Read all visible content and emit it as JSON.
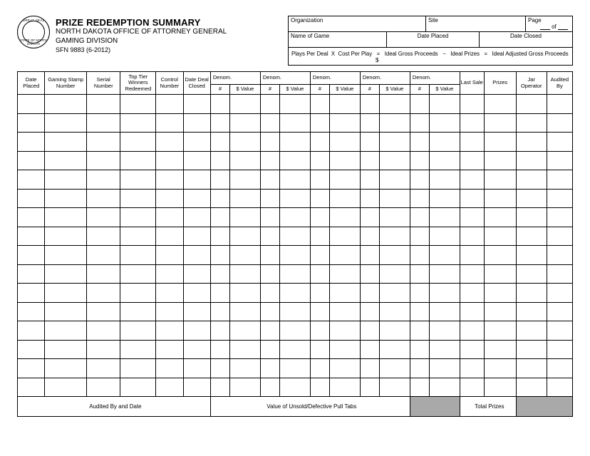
{
  "header": {
    "title": "PRIZE REDEMPTION SUMMARY",
    "office_line1": "NORTH DAKOTA OFFICE OF ATTORNEY GENERAL",
    "office_line2": "GAMING DIVISION",
    "form_code": "SFN 9883 (6-2012)",
    "seal_top": "GREAT SEAL",
    "seal_bottom": "STATE OF NORTH DAKOTA",
    "organization_label": "Organization",
    "site_label": "Site",
    "page_label": "Page",
    "page_of": "of",
    "name_of_game_label": "Name of Game",
    "date_placed_label": "Date Placed",
    "date_closed_label": "Date Closed",
    "formula_ppd": "Plays Per Deal",
    "formula_x": "X",
    "formula_cpp": "Cost Per Play",
    "formula_eq": "=",
    "formula_igp": "Ideal Gross Proceeds",
    "formula_minus": "−",
    "formula_ip": "Ideal Prizes",
    "formula_iagp": "Ideal Adjusted Gross Proceeds",
    "formula_dollar": "$"
  },
  "columns": {
    "date_placed": "Date Placed",
    "gaming_stamp": "Gaming Stamp Number",
    "serial": "Serial Number",
    "top_tier": "Top Tier Winners Redeemed",
    "control": "Control Number",
    "date_deal_closed": "Date Deal Closed",
    "denom": "Denom.",
    "num": "#",
    "value": "$ Value",
    "last_sale": "Last Sale",
    "prizes": "Prizes",
    "jar": "Jar Operator",
    "audited_by": "Audited By"
  },
  "footer": {
    "audited_by_date": "Audited By and Date",
    "value_unsold": "Value of Unsold/Defective Pull Tabs",
    "total_prizes": "Total Prizes"
  },
  "layout": {
    "body_rows": 16,
    "denom_groups": 5,
    "colors": {
      "border": "#000000",
      "background": "#ffffff",
      "grey_cell": "#a9a9a9"
    }
  }
}
